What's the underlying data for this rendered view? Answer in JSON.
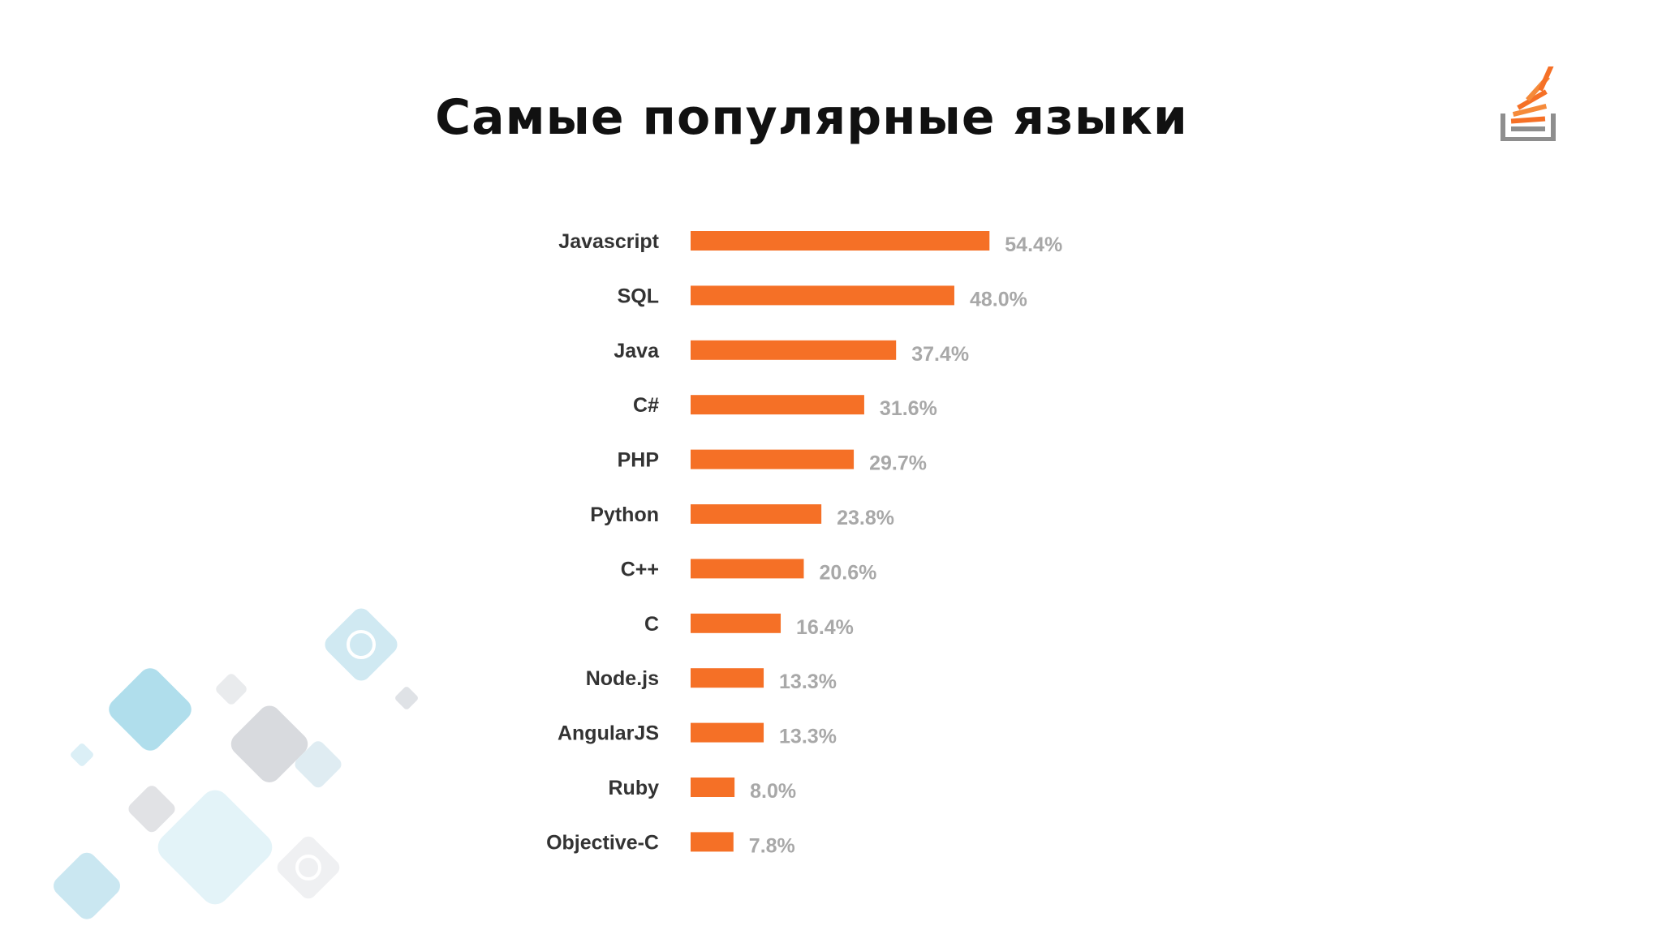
{
  "title": "Самые популярные языки",
  "logo_icon": "stack-overflow-logo-icon",
  "decor_icon": "language-bubbles-decoration",
  "colors": {
    "bar": "#f57026",
    "category_text": "#333333",
    "value_text": "#a8a8a8"
  },
  "chart_data": {
    "type": "bar",
    "orientation": "horizontal",
    "categories": [
      "Javascript",
      "SQL",
      "Java",
      "C#",
      "PHP",
      "Python",
      "C++",
      "C",
      "Node.js",
      "AngularJS",
      "Ruby",
      "Objective-C"
    ],
    "values": [
      54.4,
      48.0,
      37.4,
      31.6,
      29.7,
      23.8,
      20.6,
      16.4,
      13.3,
      13.3,
      8.0,
      7.8
    ],
    "labels": [
      "54.4%",
      "48.0%",
      "37.4%",
      "31.6%",
      "29.7%",
      "23.8%",
      "20.6%",
      "16.4%",
      "13.3%",
      "13.3%",
      "8.0%",
      "7.8%"
    ],
    "unit": "%",
    "title": "",
    "xlabel": "",
    "ylabel": "",
    "grid": false,
    "legend": "none"
  }
}
